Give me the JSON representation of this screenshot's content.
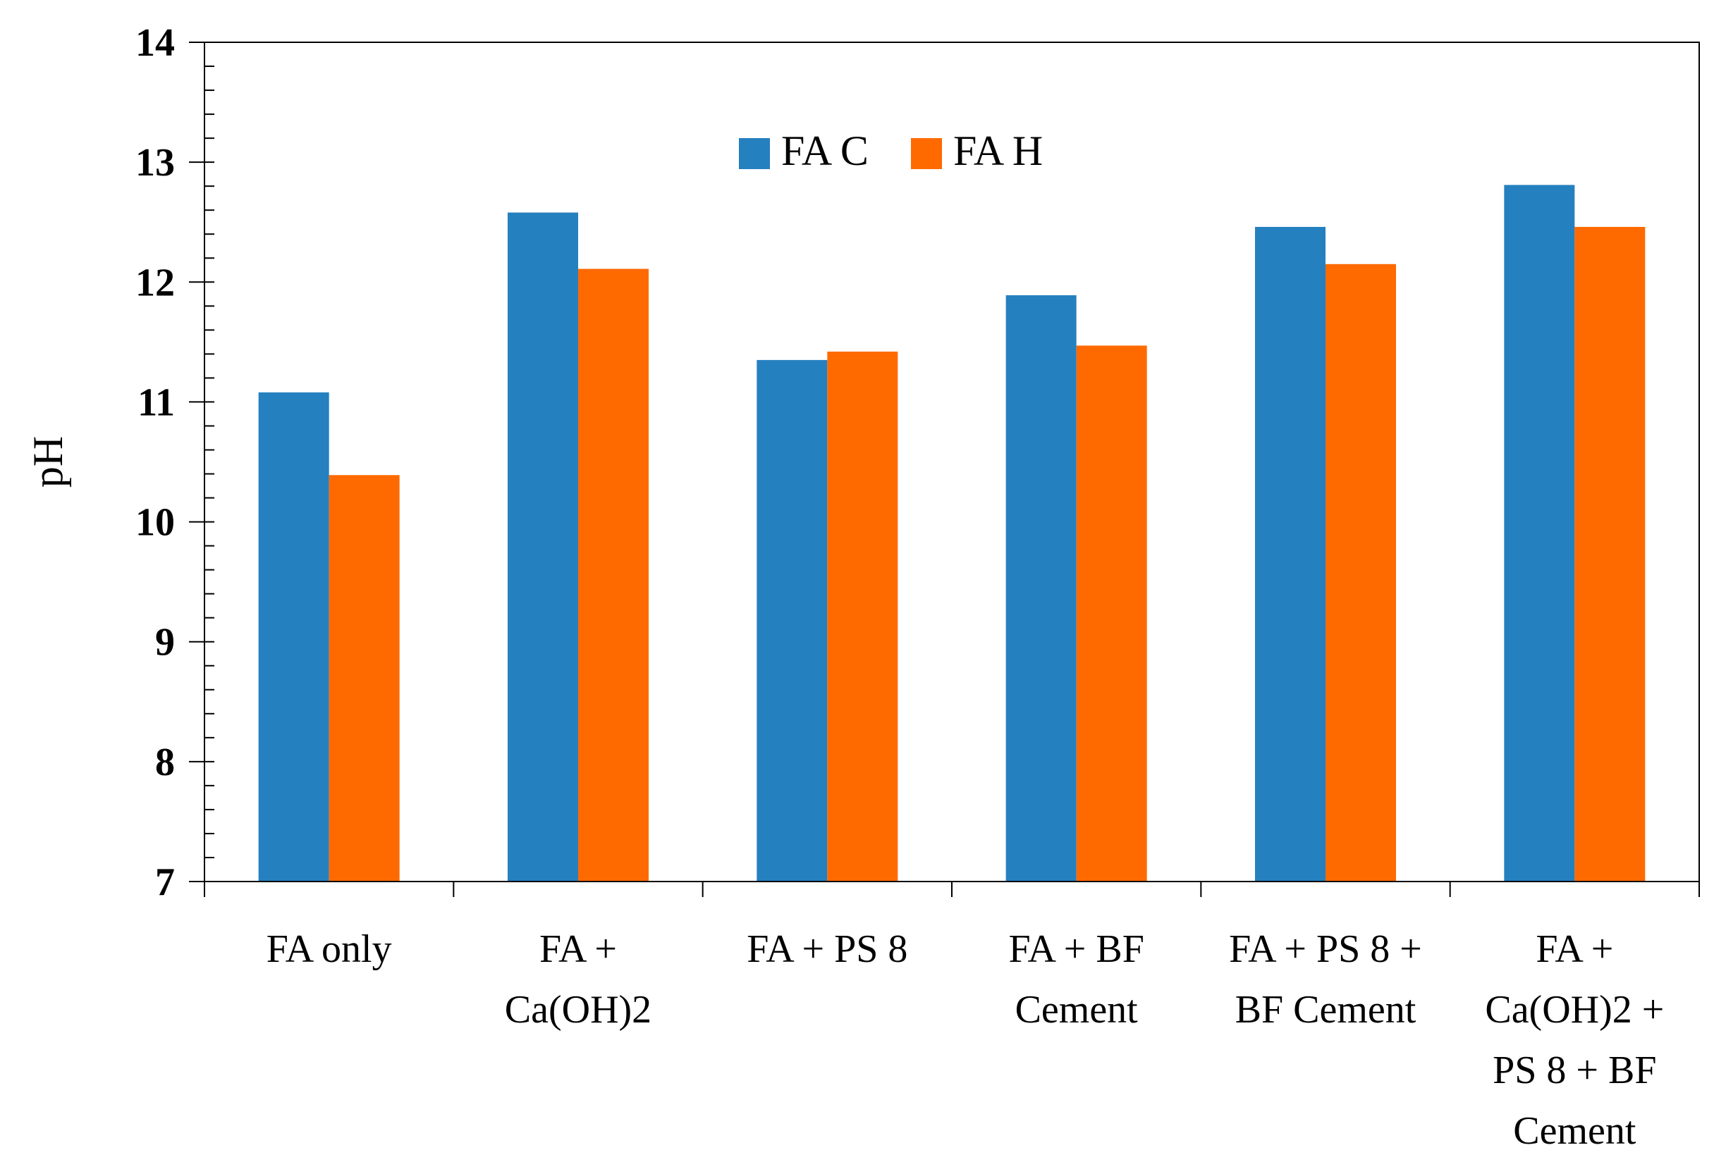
{
  "chart_data": {
    "type": "bar",
    "title": "",
    "xlabel": "",
    "ylabel": "pH",
    "ylim": [
      7,
      14
    ],
    "yticks": [
      7,
      8,
      9,
      10,
      11,
      12,
      13,
      14
    ],
    "legend_position": "top-center",
    "grid": false,
    "categories": [
      [
        "FA only"
      ],
      [
        "FA +",
        "Ca(OH)2"
      ],
      [
        "FA + PS 8"
      ],
      [
        "FA + BF",
        "Cement"
      ],
      [
        "FA + PS 8 +",
        "BF Cement"
      ],
      [
        "FA +",
        "Ca(OH)2  +",
        "PS 8 + BF",
        "Cement"
      ]
    ],
    "series": [
      {
        "name": "FA C",
        "color": "#2580BF",
        "values": [
          11.08,
          12.58,
          11.35,
          11.89,
          12.46,
          12.81
        ]
      },
      {
        "name": "FA H",
        "color": "#FF6A00",
        "values": [
          10.39,
          12.11,
          11.42,
          11.47,
          12.15,
          12.46
        ]
      }
    ]
  }
}
